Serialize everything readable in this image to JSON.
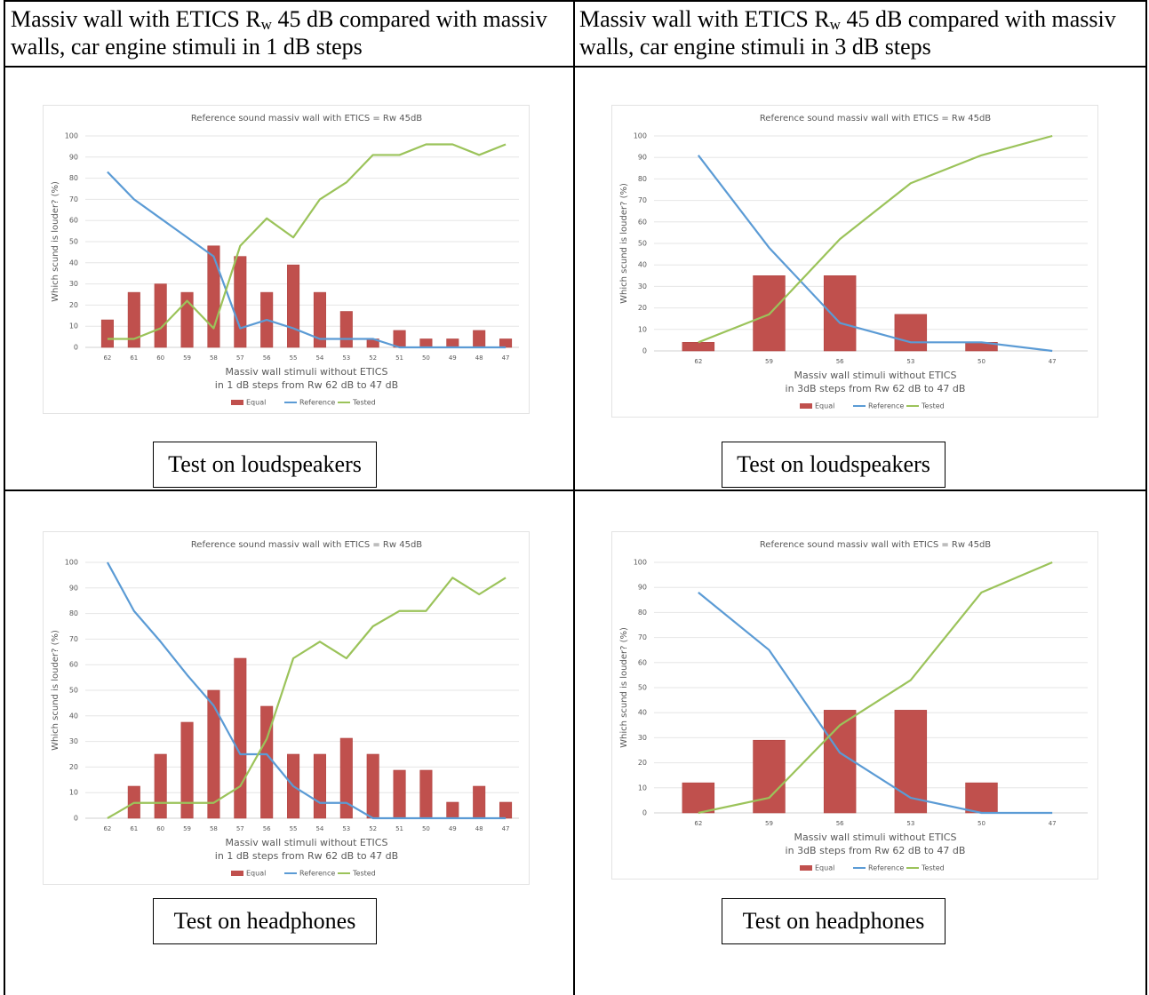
{
  "table": {
    "headers": [
      {
        "before": "Massiv wall with ETICS R",
        "sub": "w",
        "after": " 45 dB compared with massiv walls, car engine stimuli in 1 dB steps"
      },
      {
        "before": "Massiv wall with ETICS R",
        "sub": "w",
        "after": " 45 dB compared with massiv walls, car engine stimuli in 3 dB steps"
      }
    ],
    "captions": [
      "Test on loudspeakers",
      "Test on loudspeakers",
      "Test on headphones",
      "Test on headphones"
    ]
  },
  "chart_data": [
    {
      "type": "bar-line",
      "title": "Reference sound massiv wall with ETICS = Rw 45dB",
      "y_label": "Which scund is louder? (%)",
      "x_label": [
        "Massiv wall stimuli without ETICS",
        "in 1 dB steps from Rw 62 dB to 47 dB"
      ],
      "categories": [
        "62",
        "61",
        "60",
        "59",
        "58",
        "57",
        "56",
        "55",
        "54",
        "53",
        "52",
        "51",
        "50",
        "49",
        "48",
        "47"
      ],
      "series": [
        {
          "name": "Equal",
          "color": "#c0504d",
          "kind": "bar",
          "values": [
            13,
            26,
            30,
            26,
            48,
            43,
            26,
            39,
            26,
            17,
            4,
            8,
            4,
            4,
            8,
            4
          ]
        },
        {
          "name": "Reference",
          "color": "#5b9bd5",
          "kind": "line",
          "values": [
            83,
            70,
            61,
            52,
            43,
            9,
            13,
            9,
            4,
            4,
            4,
            0,
            0,
            0,
            0,
            0
          ]
        },
        {
          "name": "Tested",
          "color": "#9bc35a",
          "kind": "line",
          "values": [
            4,
            4,
            9,
            22,
            9,
            48,
            61,
            52,
            70,
            78,
            91,
            91,
            96,
            96,
            91,
            96
          ]
        }
      ],
      "ylim": [
        0,
        100
      ],
      "yticks": [
        0,
        10,
        20,
        30,
        40,
        50,
        60,
        70,
        80,
        90,
        100
      ],
      "grid": true
    },
    {
      "type": "bar-line",
      "title": "Reference sound massiv wall with ETICS = Rw 45dB",
      "y_label": "Which scund is louder? (%)",
      "x_label": [
        "Massiv wall stimuli without ETICS",
        "in 3dB steps from Rw 62 dB to 47 dB"
      ],
      "categories": [
        "62",
        "59",
        "56",
        "53",
        "50",
        "47"
      ],
      "series": [
        {
          "name": "Equal",
          "color": "#c0504d",
          "kind": "bar",
          "values": [
            4,
            35,
            35,
            17,
            4,
            0
          ]
        },
        {
          "name": "Reference",
          "color": "#5b9bd5",
          "kind": "line",
          "values": [
            91,
            48,
            13,
            4,
            4,
            0
          ]
        },
        {
          "name": "Tested",
          "color": "#9bc35a",
          "kind": "line",
          "values": [
            4,
            17,
            52,
            78,
            91,
            100
          ]
        }
      ],
      "ylim": [
        0,
        100
      ],
      "yticks": [
        0,
        10,
        20,
        30,
        40,
        50,
        60,
        70,
        80,
        90,
        100
      ],
      "grid": true
    },
    {
      "type": "bar-line",
      "title": "Reference sound massiv wall with ETICS = Rw 45dB",
      "y_label": "Which scund is louder? (%)",
      "x_label": [
        "Massiv wall stimuli without ETICS",
        "in 1 dB steps from Rw 62 dB to 47 dB"
      ],
      "categories": [
        "62",
        "61",
        "60",
        "59",
        "58",
        "57",
        "56",
        "55",
        "54",
        "53",
        "52",
        "51",
        "50",
        "49",
        "48",
        "47"
      ],
      "series": [
        {
          "name": "Equal",
          "color": "#c0504d",
          "kind": "bar",
          "values": [
            0,
            12.5,
            25,
            37.5,
            50,
            62.5,
            43.75,
            25,
            25,
            31.25,
            25,
            18.75,
            18.75,
            6.25,
            12.5,
            6.25
          ]
        },
        {
          "name": "Reference",
          "color": "#5b9bd5",
          "kind": "line",
          "values": [
            100,
            81,
            69,
            56,
            44,
            25,
            25,
            12.5,
            6,
            6,
            0,
            0,
            0,
            0,
            0,
            0
          ]
        },
        {
          "name": "Tested",
          "color": "#9bc35a",
          "kind": "line",
          "values": [
            0,
            6,
            6,
            6,
            6,
            12.5,
            31,
            62.5,
            69,
            62.5,
            75,
            81,
            81,
            94,
            87.5,
            94
          ]
        }
      ],
      "ylim": [
        0,
        100
      ],
      "yticks": [
        0,
        10,
        20,
        30,
        40,
        50,
        60,
        70,
        80,
        90,
        100
      ],
      "grid": true
    },
    {
      "type": "bar-line",
      "title": "Reference sound massiv wall with ETICS = Rw 45dB",
      "y_label": "Which scund is louder? (%)",
      "x_label": [
        "Massiv wall stimuli without ETICS",
        "in 3dB steps from Rw 62 dB to 47 dB"
      ],
      "categories": [
        "62",
        "59",
        "56",
        "53",
        "50",
        "47"
      ],
      "series": [
        {
          "name": "Equal",
          "color": "#c0504d",
          "kind": "bar",
          "values": [
            12,
            29,
            41,
            41,
            12,
            0
          ]
        },
        {
          "name": "Reference",
          "color": "#5b9bd5",
          "kind": "line",
          "values": [
            88,
            65,
            24,
            6,
            0,
            0
          ]
        },
        {
          "name": "Tested",
          "color": "#9bc35a",
          "kind": "line",
          "values": [
            0,
            6,
            35,
            53,
            88,
            100
          ]
        }
      ],
      "ylim": [
        0,
        100
      ],
      "yticks": [
        0,
        10,
        20,
        30,
        40,
        50,
        60,
        70,
        80,
        90,
        100
      ],
      "grid": true
    }
  ]
}
